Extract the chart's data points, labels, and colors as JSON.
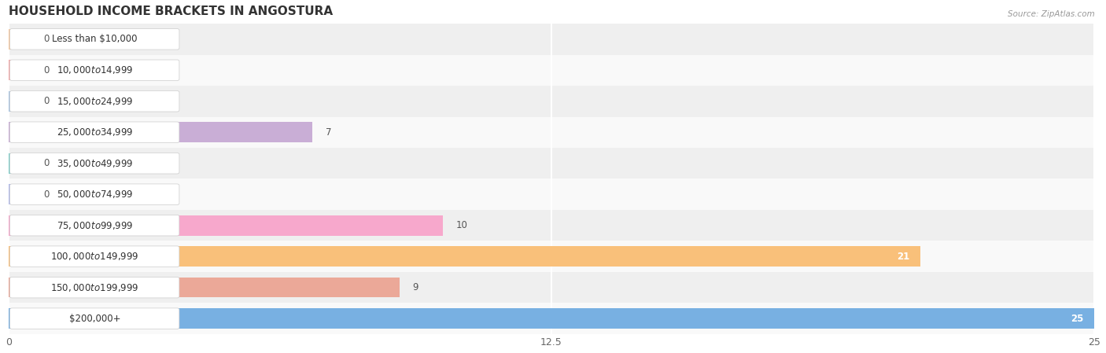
{
  "title": "HOUSEHOLD INCOME BRACKETS IN ANGOSTURA",
  "source": "Source: ZipAtlas.com",
  "categories": [
    "Less than $10,000",
    "$10,000 to $14,999",
    "$15,000 to $24,999",
    "$25,000 to $34,999",
    "$35,000 to $49,999",
    "$50,000 to $74,999",
    "$75,000 to $99,999",
    "$100,000 to $149,999",
    "$150,000 to $199,999",
    "$200,000+"
  ],
  "values": [
    0,
    0,
    0,
    7,
    0,
    0,
    10,
    21,
    9,
    25
  ],
  "bar_colors": [
    "#f6c89e",
    "#f4a9a9",
    "#a9c5e2",
    "#c9aed6",
    "#7ecfca",
    "#b2baec",
    "#f7a8cc",
    "#f9c07a",
    "#eba898",
    "#78b0e2"
  ],
  "label_colors": [
    "#555555",
    "#555555",
    "#555555",
    "#555555",
    "#555555",
    "#555555",
    "#555555",
    "#ffffff",
    "#555555",
    "#ffffff"
  ],
  "row_alt_colors": [
    "#efefef",
    "#f9f9f9"
  ],
  "xlim": [
    0,
    25
  ],
  "xticks": [
    0,
    12.5,
    25
  ],
  "xtick_labels": [
    "0",
    "12.5",
    "25"
  ],
  "background_color": "#ffffff",
  "bar_height": 0.65,
  "title_fontsize": 11,
  "label_fontsize": 8.5,
  "value_fontsize": 8.5,
  "grid_color": "#ffffff"
}
